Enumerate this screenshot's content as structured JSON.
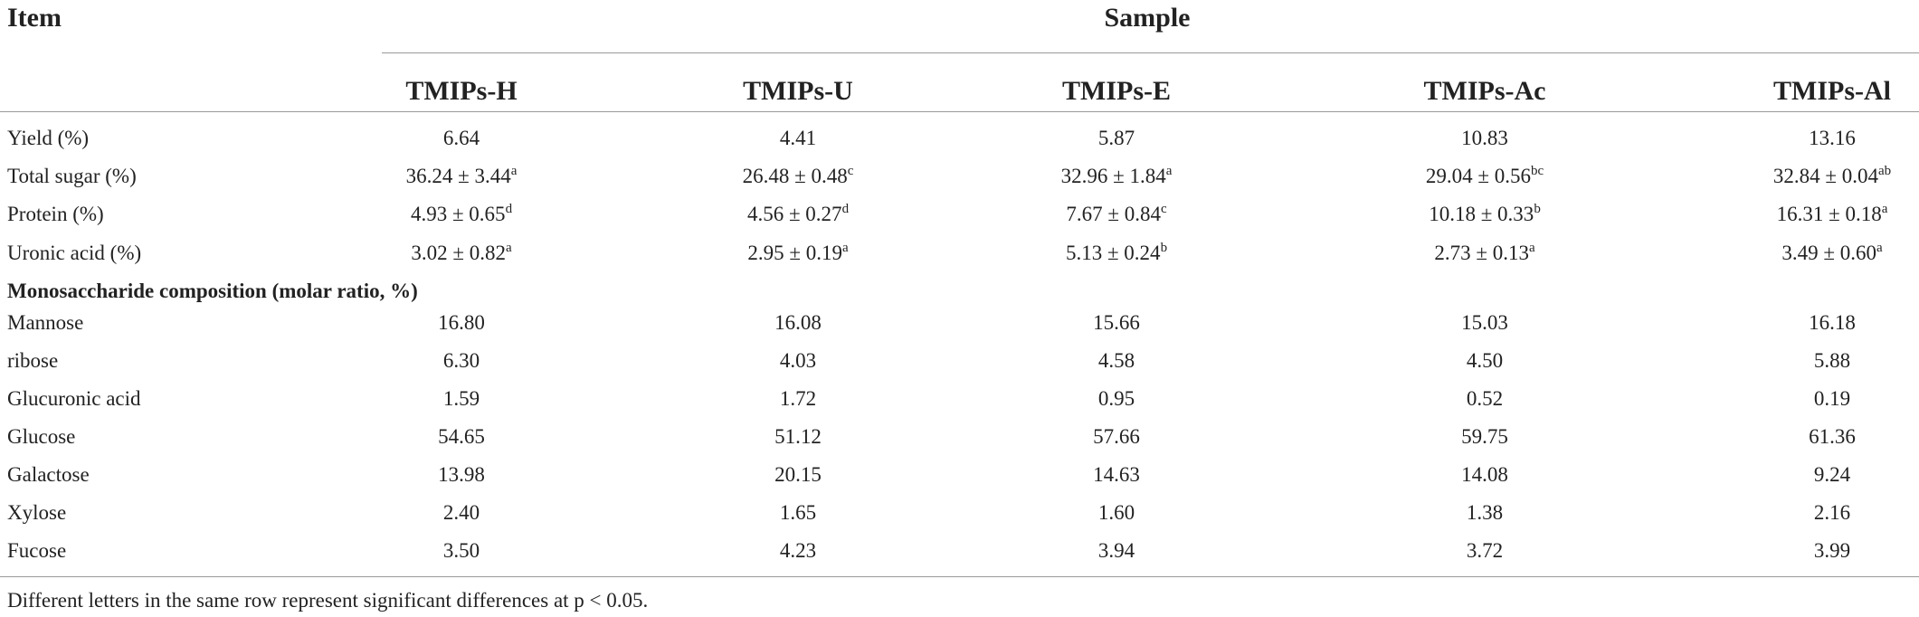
{
  "header": {
    "item": "Item",
    "sample": "Sample",
    "columns": [
      "TMIPs-H",
      "TMIPs-U",
      "TMIPs-E",
      "TMIPs-Ac",
      "TMIPs-Al"
    ]
  },
  "body": {
    "rows": [
      {
        "label": "Yield (%)",
        "values": [
          "6.64",
          "4.41",
          "5.87",
          "10.83",
          "13.16"
        ]
      },
      {
        "label": "Total sugar (%)",
        "values": [
          "36.24 ± 3.44",
          "26.48 ± 0.48",
          "32.96 ± 1.84",
          "29.04 ± 0.56",
          "32.84 ± 0.04"
        ],
        "letters": [
          "a",
          "c",
          "a",
          "bc",
          "ab"
        ]
      },
      {
        "label": "Protein (%)",
        "values": [
          "4.93 ± 0.65",
          "4.56 ± 0.27",
          "7.67 ± 0.84",
          "10.18 ± 0.33",
          "16.31 ± 0.18"
        ],
        "letters": [
          "d",
          "d",
          "c",
          "b",
          "a"
        ]
      },
      {
        "label": "Uronic acid (%)",
        "values": [
          "3.02 ± 0.82",
          "2.95 ± 0.19",
          "5.13 ± 0.24",
          "2.73 ± 0.13",
          "3.49 ± 0.60"
        ],
        "letters": [
          "a",
          "a",
          "b",
          "a",
          "a"
        ]
      }
    ]
  },
  "monosaccharide": {
    "title": "Monosaccharide composition (molar ratio, %)",
    "rows": [
      {
        "label": "Mannose",
        "values": [
          "16.80",
          "16.08",
          "15.66",
          "15.03",
          "16.18"
        ]
      },
      {
        "label": "ribose",
        "values": [
          "6.30",
          "4.03",
          "4.58",
          "4.50",
          "5.88"
        ]
      },
      {
        "label": "Glucuronic acid",
        "values": [
          "1.59",
          "1.72",
          "0.95",
          "0.52",
          "0.19"
        ]
      },
      {
        "label": "Glucose",
        "values": [
          "54.65",
          "51.12",
          "57.66",
          "59.75",
          "61.36"
        ]
      },
      {
        "label": "Galactose",
        "values": [
          "13.98",
          "20.15",
          "14.63",
          "14.08",
          "9.24"
        ]
      },
      {
        "label": "Xylose",
        "values": [
          "2.40",
          "1.65",
          "1.60",
          "1.38",
          "2.16"
        ]
      },
      {
        "label": "Fucose",
        "values": [
          "3.50",
          "4.23",
          "3.94",
          "3.72",
          "3.99"
        ]
      }
    ]
  },
  "footnote": "Different letters in the same row represent significant differences at p < 0.05."
}
